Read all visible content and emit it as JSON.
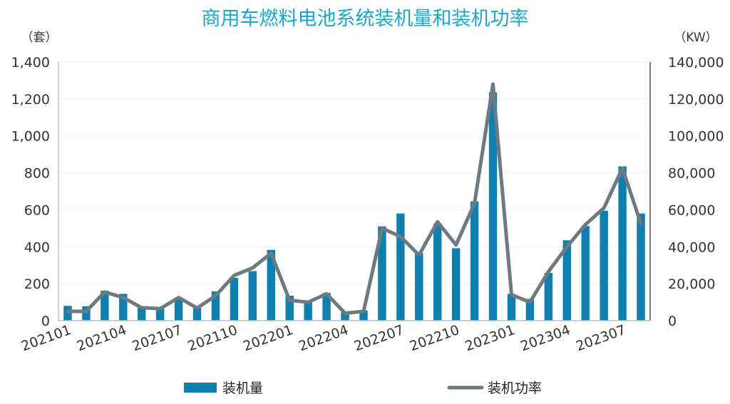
{
  "chart_data": {
    "type": "bar",
    "title": "商用车燃料电池系统装机量和装机功率",
    "left_unit": "（套）",
    "right_unit": "（KW）",
    "categories": [
      "202101",
      "202102",
      "202103",
      "202104",
      "202105",
      "202106",
      "202107",
      "202108",
      "202109",
      "202110",
      "202111",
      "202112",
      "202201",
      "202202",
      "202203",
      "202204",
      "202205",
      "202206",
      "202207",
      "202208",
      "202209",
      "202210",
      "202211",
      "202212",
      "202301",
      "202302",
      "202303",
      "202304",
      "202305",
      "202306",
      "202307",
      "202308"
    ],
    "x_tick_labels": [
      "202101",
      "202104",
      "202107",
      "202110",
      "202201",
      "202204",
      "202207",
      "202210",
      "202301",
      "202304",
      "202307"
    ],
    "left_axis": {
      "ylim": [
        0,
        1400
      ],
      "ticks": [
        "0",
        "200",
        "400",
        "600",
        "800",
        "1,000",
        "1,200",
        "1,400"
      ]
    },
    "right_axis": {
      "ylim": [
        0,
        140000
      ],
      "ticks": [
        "0",
        "20,000",
        "40,000",
        "60,000",
        "80,000",
        "100,000",
        "120,000",
        "140,000"
      ]
    },
    "series": [
      {
        "name": "装机量",
        "type": "bar",
        "axis": "left",
        "color": "#0f7fb0",
        "values": [
          80,
          78,
          162,
          145,
          75,
          70,
          125,
          68,
          158,
          232,
          268,
          383,
          135,
          110,
          150,
          45,
          55,
          510,
          580,
          365,
          525,
          392,
          645,
          1235,
          145,
          118,
          258,
          435,
          512,
          595,
          835,
          580
        ]
      },
      {
        "name": "装机功率",
        "type": "line",
        "axis": "right",
        "color": "#6d7a80",
        "values": [
          5000,
          5000,
          15500,
          12500,
          7000,
          6500,
          12500,
          6800,
          13500,
          24500,
          28500,
          36500,
          11000,
          10000,
          14500,
          4000,
          5000,
          50000,
          45500,
          35500,
          53500,
          41000,
          63500,
          128000,
          14000,
          10000,
          26500,
          40000,
          52000,
          61000,
          82500,
          52500
        ]
      }
    ],
    "grid": true,
    "legend_position": "bottom"
  }
}
